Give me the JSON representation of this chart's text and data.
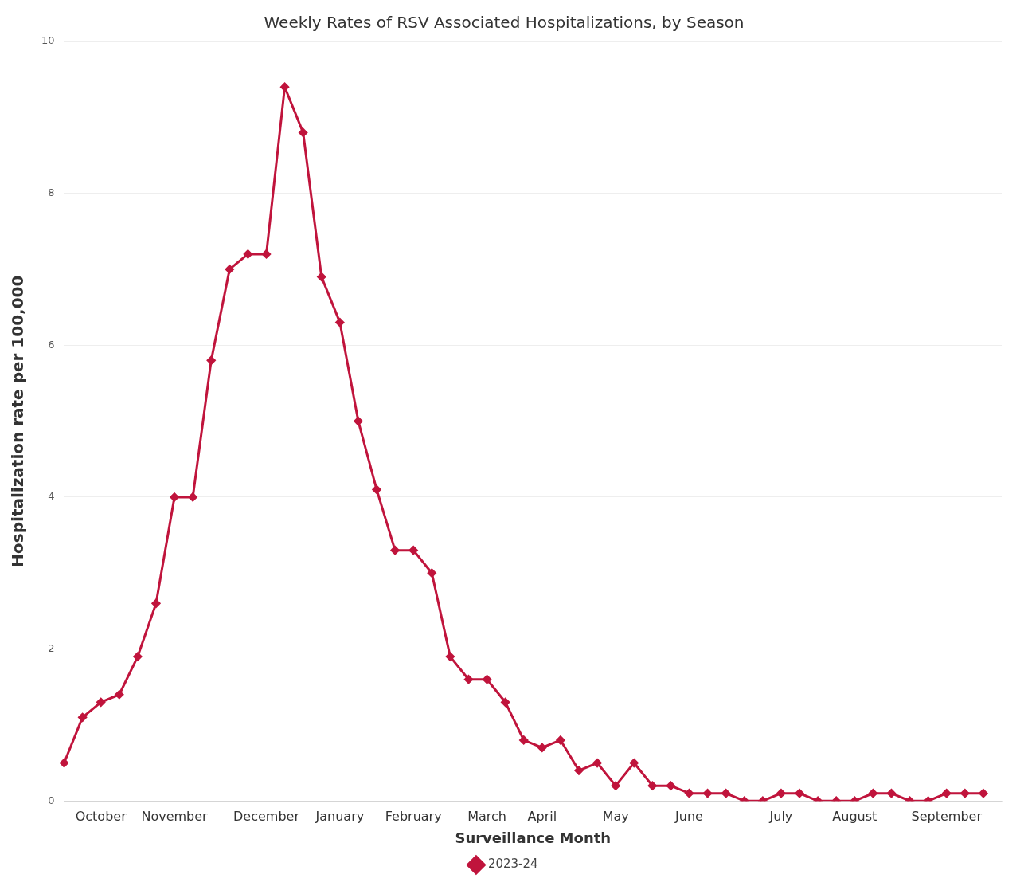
{
  "chart_data": {
    "type": "line",
    "title": "Weekly Rates of RSV Associated Hospitalizations, by Season",
    "xlabel": "Surveillance Month",
    "ylabel": "Hospitalization rate per 100,000",
    "categories": [
      null,
      null,
      "October",
      null,
      null,
      null,
      "November",
      null,
      null,
      null,
      null,
      "December",
      null,
      null,
      null,
      "January",
      null,
      null,
      null,
      "February",
      null,
      null,
      null,
      "March",
      null,
      null,
      "April",
      null,
      null,
      null,
      "May",
      null,
      null,
      null,
      "June",
      null,
      null,
      null,
      null,
      "July",
      null,
      null,
      null,
      "August",
      null,
      null,
      null,
      null,
      "September",
      null,
      null,
      null
    ],
    "series": [
      {
        "name": "2023-24",
        "color": "#c0143c",
        "values": [
          0.5,
          1.1,
          1.3,
          1.4,
          1.9,
          2.6,
          4.0,
          4.0,
          5.8,
          7.0,
          7.2,
          7.2,
          9.4,
          8.8,
          6.9,
          6.3,
          5.0,
          4.1,
          3.3,
          3.3,
          3.0,
          1.9,
          1.6,
          1.6,
          1.3,
          0.8,
          0.7,
          0.8,
          0.4,
          0.5,
          0.2,
          0.5,
          0.2,
          0.2,
          0.1,
          0.1,
          0.1,
          0.0,
          0.0,
          0.1,
          0.1,
          0.0,
          0.0,
          0.0,
          0.1,
          0.1,
          0.0,
          0.0,
          0.1,
          0.1,
          0.1,
          null
        ]
      }
    ],
    "ylim": [
      0,
      10
    ],
    "yticks": [
      0,
      2,
      4,
      6,
      8,
      10
    ],
    "grid": "y",
    "legend": "bottom",
    "marker": "diamond",
    "line_style": "solid"
  }
}
